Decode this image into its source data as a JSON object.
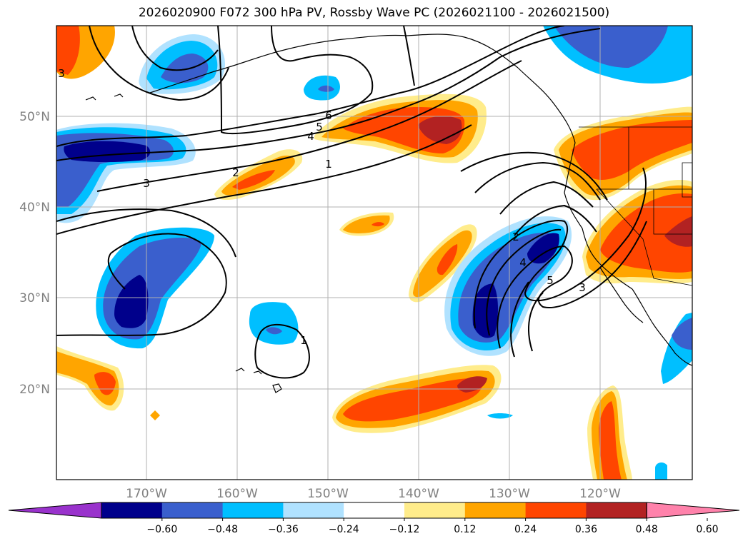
{
  "title": "2026020900 F072 300 hPa PV, Rossby Wave PC (2026021100 - 2026021500)",
  "map": {
    "region": "North Pacific",
    "lon_range": [
      -180,
      -110
    ],
    "lat_range": [
      10,
      60
    ],
    "lat_ticks": [
      {
        "value": 50,
        "label": "50°N"
      },
      {
        "value": 40,
        "label": "40°N"
      },
      {
        "value": 30,
        "label": "30°N"
      },
      {
        "value": 20,
        "label": "20°N"
      }
    ],
    "lon_ticks": [
      {
        "value": -170,
        "label": "170°W"
      },
      {
        "value": -160,
        "label": "160°W"
      },
      {
        "value": -150,
        "label": "150°W"
      },
      {
        "value": -140,
        "label": "140°W"
      },
      {
        "value": -130,
        "label": "130°W"
      },
      {
        "value": -120,
        "label": "120°W"
      }
    ],
    "gridlines": true,
    "contour_labels": [
      "6",
      "5",
      "4",
      "3",
      "2",
      "1",
      "2",
      "4",
      "5",
      "3",
      "1",
      "3"
    ]
  },
  "colorbar": {
    "extend": "both",
    "colors": [
      "#9932cc",
      "#00008b",
      "#3a5fcd",
      "#00bfff",
      "#b0e2ff",
      "#ffffff",
      "#ffec8b",
      "#ffa500",
      "#ff4500",
      "#b22222",
      "#ff82ab"
    ],
    "tick_labels": [
      "−0.60",
      "−0.48",
      "−0.36",
      "−0.24",
      "−0.12",
      "0.12",
      "0.24",
      "0.36",
      "0.48",
      "0.60"
    ]
  }
}
